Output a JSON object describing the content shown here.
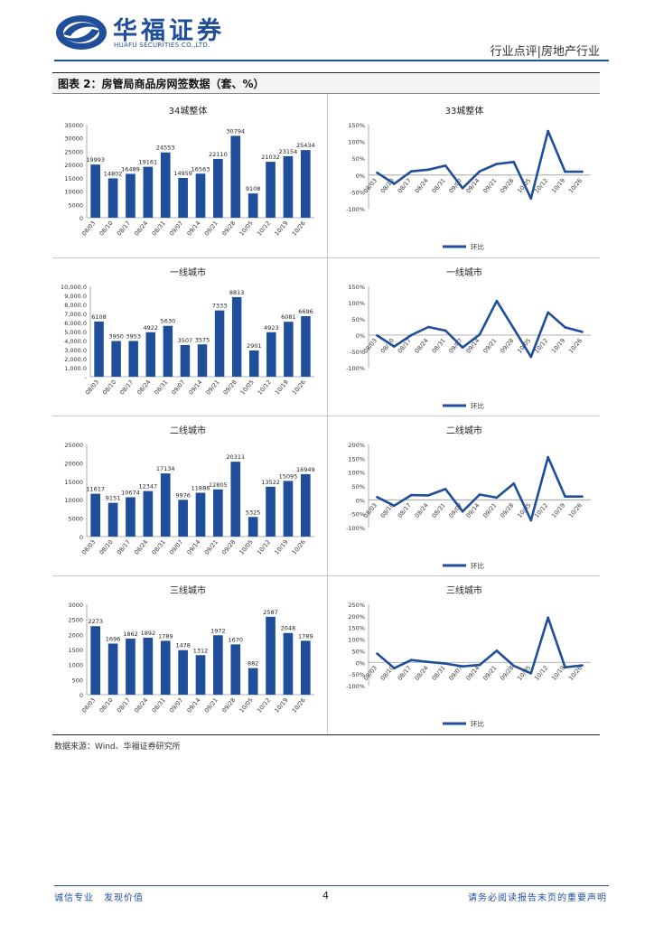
{
  "header": {
    "logo_cn": "华福证券",
    "logo_en": "HUAFU SECURITIES CO.,LTD.",
    "industry": "行业点评|房地产行业"
  },
  "figure": {
    "title": "图表 2：房管局商品房网签数据（套、%）"
  },
  "source": "数据来源：Wind、华福证券研究所",
  "footer": {
    "left": "诚信专业　发现价值",
    "page": "4",
    "right": "请务必阅读报告末页的重要声明"
  },
  "colors": {
    "bar": "#1f4e9a",
    "line": "#1f4e9a",
    "brand": "#1f4e9a"
  },
  "chart_data": [
    {
      "id": "bar-34",
      "type": "bar",
      "title": "34城整体",
      "categories": [
        "08/03",
        "08/10",
        "08/17",
        "08/24",
        "08/31",
        "09/07",
        "09/14",
        "09/21",
        "09/28",
        "10/05",
        "10/12",
        "10/19",
        "10/26"
      ],
      "values": [
        19993,
        14802,
        16489,
        19161,
        24553,
        14959,
        16563,
        22110,
        30794,
        9108,
        21032,
        23154,
        25434
      ],
      "value_labels": [
        "19993",
        "14802",
        "16489",
        "19161",
        "24553",
        "14959",
        "16563",
        "22110",
        "30794",
        "9108",
        "21032",
        "23154",
        "25434"
      ],
      "ylim": [
        0,
        35000
      ],
      "yticks": [
        0,
        5000,
        10000,
        15000,
        20000,
        25000,
        30000,
        35000
      ],
      "ytick_labels": [
        "0",
        "5000",
        "10000",
        "15000",
        "20000",
        "25000",
        "30000",
        "35000"
      ]
    },
    {
      "id": "line-34",
      "type": "line",
      "title": "33城整体",
      "categories": [
        "08/03",
        "08/10",
        "08/17",
        "08/24",
        "08/31",
        "09/07",
        "09/14",
        "09/21",
        "09/28",
        "10/05",
        "10/12",
        "10/19",
        "10/26"
      ],
      "values": [
        7,
        -26,
        11,
        16,
        28,
        -39,
        11,
        33,
        39,
        -70,
        131,
        10,
        10
      ],
      "legend": "环比",
      "ylim": [
        -100,
        150
      ],
      "yticks": [
        -100,
        -50,
        0,
        50,
        100,
        150
      ],
      "ytick_labels": [
        "-100%",
        "-50%",
        "0%",
        "50%",
        "100%",
        "150%"
      ]
    },
    {
      "id": "bar-t1",
      "type": "bar",
      "title": "一线城市",
      "categories": [
        "08/03",
        "08/10",
        "08/17",
        "08/24",
        "08/31",
        "09/07",
        "09/14",
        "09/21",
        "09/28",
        "10/05",
        "10/12",
        "10/19",
        "10/26"
      ],
      "values": [
        6108,
        3950,
        3953,
        4922,
        5630,
        3507,
        3575,
        7333,
        8813,
        2901,
        4923,
        6081,
        6696
      ],
      "value_labels": [
        "6108",
        "3950",
        "3953",
        "4922",
        "5630",
        "3507",
        "3575",
        "7333",
        "8813",
        "2901",
        "4923",
        "6081",
        "6696"
      ],
      "ylim": [
        0,
        10000
      ],
      "yticks": [
        0,
        1000,
        2000,
        3000,
        4000,
        5000,
        6000,
        7000,
        8000,
        9000,
        10000
      ],
      "ytick_labels": [
        "-",
        "1,000.0",
        "2,000.0",
        "3,000.0",
        "4,000.0",
        "5,000.0",
        "6,000.0",
        "7,000.0",
        "8,000.0",
        "9,000.0",
        "10,000.0"
      ]
    },
    {
      "id": "line-t1",
      "type": "line",
      "title": "一线城市",
      "categories": [
        "08/03",
        "08/10",
        "08/17",
        "08/24",
        "08/31",
        "09/07",
        "09/14",
        "09/21",
        "09/28",
        "10/05",
        "10/12",
        "10/19",
        "10/26"
      ],
      "values": [
        -1,
        -35,
        0,
        25,
        14,
        -38,
        2,
        105,
        20,
        -67,
        70,
        24,
        10
      ],
      "legend": "环比",
      "ylim": [
        -100,
        150
      ],
      "yticks": [
        -100,
        -50,
        0,
        50,
        100,
        150
      ],
      "ytick_labels": [
        "-100%",
        "-50%",
        "0%",
        "50%",
        "100%",
        "150%"
      ]
    },
    {
      "id": "bar-t2",
      "type": "bar",
      "title": "二线城市",
      "categories": [
        "08/03",
        "08/10",
        "08/17",
        "08/24",
        "08/31",
        "09/07",
        "09/14",
        "09/21",
        "09/28",
        "10/05",
        "10/12",
        "10/19",
        "10/26"
      ],
      "values": [
        11617,
        9151,
        10674,
        12347,
        17134,
        9976,
        11886,
        12805,
        20311,
        5325,
        13522,
        15095,
        16949
      ],
      "value_labels": [
        "11617",
        "9151",
        "10674",
        "12347",
        "17134",
        "9976",
        "11886",
        "12805",
        "20311",
        "5325",
        "13522",
        "15095",
        "16949"
      ],
      "ylim": [
        0,
        25000
      ],
      "yticks": [
        0,
        5000,
        10000,
        15000,
        20000,
        25000
      ],
      "ytick_labels": [
        "0",
        "5000",
        "10000",
        "15000",
        "20000",
        "25000"
      ]
    },
    {
      "id": "line-t2",
      "type": "line",
      "title": "二线城市",
      "categories": [
        "08/03",
        "08/10",
        "08/17",
        "08/24",
        "08/31",
        "09/07",
        "09/14",
        "09/21",
        "09/28",
        "10/05",
        "10/12",
        "10/19",
        "10/26"
      ],
      "values": [
        10,
        -21,
        17,
        16,
        39,
        -42,
        19,
        8,
        59,
        -74,
        154,
        12,
        12
      ],
      "legend": "环比",
      "ylim": [
        -100,
        200
      ],
      "yticks": [
        -100,
        -50,
        0,
        50,
        100,
        150,
        200
      ],
      "ytick_labels": [
        "-100%",
        "-50%",
        "0%",
        "50%",
        "100%",
        "150%",
        "200%"
      ]
    },
    {
      "id": "bar-t3",
      "type": "bar",
      "title": "三线城市",
      "categories": [
        "08/03",
        "08/10",
        "08/17",
        "08/24",
        "08/31",
        "09/07",
        "09/14",
        "09/21",
        "09/28",
        "10/05",
        "10/12",
        "10/19",
        "10/26"
      ],
      "values": [
        2273,
        1696,
        1862,
        1892,
        1789,
        1478,
        1312,
        1972,
        1670,
        882,
        2587,
        2048,
        1789
      ],
      "value_labels": [
        "2273",
        "1696",
        "1862",
        "1892",
        "1789",
        "1478",
        "1312",
        "1972",
        "1670",
        "882",
        "2587",
        "2048",
        "1789"
      ],
      "ylim": [
        0,
        3000
      ],
      "yticks": [
        0,
        500,
        1000,
        1500,
        2000,
        2500,
        3000
      ],
      "ytick_labels": [
        "0",
        "500",
        "1000",
        "1500",
        "2000",
        "2500",
        "3000"
      ]
    },
    {
      "id": "line-t3",
      "type": "line",
      "title": "三线城市",
      "categories": [
        "08/03",
        "08/10",
        "08/17",
        "08/24",
        "08/31",
        "09/07",
        "09/14",
        "09/21",
        "09/28",
        "10/05",
        "10/12",
        "10/19",
        "10/26"
      ],
      "values": [
        38,
        -25,
        10,
        2,
        -5,
        -17,
        -11,
        50,
        -15,
        -47,
        193,
        -21,
        -13
      ],
      "legend": "环比",
      "ylim": [
        -100,
        250
      ],
      "yticks": [
        -100,
        -50,
        0,
        50,
        100,
        150,
        200,
        250
      ],
      "ytick_labels": [
        "-100%",
        "-50%",
        "0%",
        "50%",
        "100%",
        "150%",
        "200%",
        "250%"
      ]
    }
  ]
}
